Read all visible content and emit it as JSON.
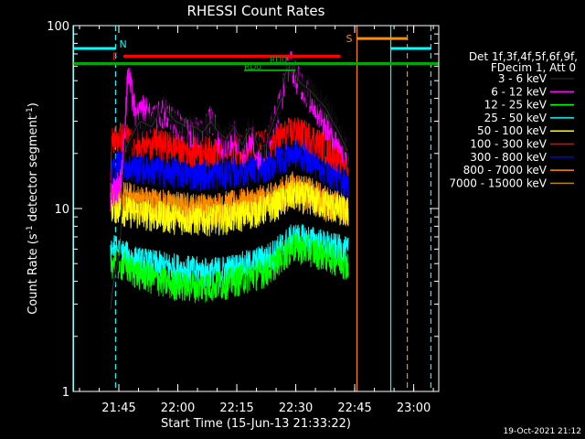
{
  "chart_data": {
    "type": "line",
    "title": "RHESSI Count Rates",
    "xlabel": "Start Time (15-Jun-13 21:33:22)",
    "ylabel_prefix": "Count Rate (s",
    "ylabel_sup": "-1",
    "ylabel_mid": " detector segment",
    "ylabel_sup2": "-1",
    "ylabel_suffix": ")",
    "yscale": "log",
    "ylim": [
      1,
      100
    ],
    "xlim_minutes": [
      0,
      93
    ],
    "y_ticks": [
      {
        "value": 1,
        "label": "1"
      },
      {
        "value": 10,
        "label": "10"
      },
      {
        "value": 100,
        "label": "100"
      }
    ],
    "x_ticks": [
      {
        "minute": 11.63,
        "label": "21:45"
      },
      {
        "minute": 26.63,
        "label": "22:00"
      },
      {
        "minute": 41.63,
        "label": "22:15"
      },
      {
        "minute": 56.63,
        "label": "22:30"
      },
      {
        "minute": 71.63,
        "label": "22:45"
      },
      {
        "minute": 86.63,
        "label": "23:00"
      }
    ],
    "legend_header": [
      "Det 1f,3f,4f,5f,6f,9f,",
      "FDecim 1, Att 0"
    ],
    "legend_position": "right",
    "data_start_minute": 9.5,
    "data_end_minute": 70.0,
    "series": [
      {
        "name": "3 - 6 keV",
        "color": "#000000",
        "minute": [
          9.5,
          10.5,
          12,
          13,
          15,
          17,
          20,
          23,
          26,
          29,
          31,
          33,
          35,
          37,
          39,
          41,
          43,
          45,
          47,
          49,
          51,
          53,
          54,
          55,
          56,
          57,
          58,
          60,
          62,
          64,
          66,
          68,
          70
        ],
        "values": [
          2.8,
          4.2,
          5.8,
          20,
          25,
          30,
          28,
          36,
          30,
          28,
          28,
          26,
          30,
          26,
          24,
          28,
          22,
          28,
          22,
          22,
          30,
          40,
          55,
          60,
          62,
          52,
          48,
          45,
          40,
          36,
          30,
          25,
          20
        ]
      },
      {
        "name": "6 - 12 keV",
        "color": "#ff00ff",
        "minute": [
          9.5,
          12,
          13,
          14,
          16,
          18,
          20,
          23,
          26,
          29,
          31,
          33,
          35,
          37,
          39,
          41,
          43,
          45,
          47,
          49,
          51,
          53,
          55,
          57,
          59,
          61,
          63,
          65,
          67,
          70
        ],
        "values": [
          12,
          14,
          22,
          55,
          30,
          36,
          30,
          34,
          30,
          26,
          27,
          25,
          32,
          24,
          22,
          26,
          20,
          26,
          20,
          22,
          30,
          40,
          65,
          52,
          45,
          38,
          32,
          28,
          24,
          20
        ]
      },
      {
        "name": "12 - 25 keV",
        "color": "#00ff00",
        "minute": [
          9.5,
          12,
          16,
          20,
          25,
          30,
          35,
          40,
          45,
          50,
          53,
          56,
          60,
          65,
          70
        ],
        "values": [
          5.2,
          5,
          4.5,
          4.2,
          3.9,
          3.8,
          3.8,
          4,
          4.3,
          4.7,
          5.5,
          6.2,
          6,
          5.5,
          5
        ]
      },
      {
        "name": "25 - 50 keV",
        "color": "#00ffff",
        "minute": [
          9.5,
          12,
          16,
          20,
          25,
          30,
          35,
          40,
          45,
          50,
          53,
          56,
          60,
          65,
          70
        ],
        "values": [
          6.2,
          5.8,
          5.2,
          5,
          4.8,
          4.6,
          4.5,
          4.7,
          5,
          5.5,
          6.2,
          7,
          6.8,
          6.3,
          5.8
        ]
      },
      {
        "name": "50 - 100 keV",
        "color": "#ffff00",
        "minute": [
          9.5,
          12,
          16,
          20,
          25,
          30,
          35,
          40,
          45,
          50,
          53,
          56,
          60,
          65,
          70
        ],
        "values": [
          10.5,
          10,
          9.5,
          9.3,
          9,
          8.8,
          8.8,
          9,
          9.5,
          10.2,
          11,
          12,
          11.5,
          10.5,
          9.5
        ]
      },
      {
        "name": "100 - 300 keV",
        "color": "#ff0000",
        "minute": [
          9.5,
          10,
          12,
          15,
          20,
          25,
          30,
          35,
          40,
          45,
          50,
          53,
          56,
          60,
          65,
          70
        ],
        "values": [
          15,
          24,
          25,
          24,
          23,
          22,
          21,
          21,
          21.5,
          22,
          23,
          25,
          27,
          25,
          21,
          18
        ]
      },
      {
        "name": "300 - 800 keV",
        "color": "#0000ff",
        "minute": [
          9.5,
          10,
          12,
          15,
          20,
          25,
          30,
          35,
          40,
          45,
          50,
          53,
          56,
          60,
          65,
          70
        ],
        "values": [
          12,
          17,
          18,
          17,
          16.5,
          16,
          15.5,
          15.5,
          16,
          16.5,
          17.5,
          19,
          20.5,
          19,
          16,
          14
        ]
      },
      {
        "name": "800 - 7000 keV",
        "color": "#ff8c00",
        "minute": [
          9.5,
          10,
          12,
          15,
          20,
          25,
          30,
          35,
          40,
          45,
          50,
          53,
          56,
          60,
          65,
          70
        ],
        "values": [
          12.5,
          13,
          12,
          11.5,
          11,
          10.5,
          10.2,
          10.2,
          10.5,
          11,
          11.5,
          12.5,
          13.5,
          12.5,
          11,
          10
        ]
      },
      {
        "name": "7000 - 15000 keV",
        "color": "#b8860b",
        "minute": [
          9.5,
          12,
          16,
          20,
          25,
          30,
          35,
          40,
          45,
          50,
          53,
          56,
          60,
          65,
          70
        ],
        "values": [
          12,
          11,
          10.5,
          10.2,
          10,
          9.8,
          9.8,
          10,
          10.3,
          10.8,
          11.5,
          12,
          11.5,
          10.5,
          9.8
        ]
      }
    ],
    "vertical_lines": [
      {
        "minute": 0.1,
        "color": "#00ffff",
        "style": "solid"
      },
      {
        "minute": 10.8,
        "color": "#00ffff",
        "style": "dashed"
      },
      {
        "minute": 72.2,
        "color": "#ff8c00",
        "style": "solid"
      },
      {
        "minute": 80.8,
        "color": "#00ffff",
        "style": "solid"
      },
      {
        "minute": 85.0,
        "color": "#ff8c00",
        "style": "dashed"
      },
      {
        "minute": 91.0,
        "color": "#00ffff",
        "style": "dashed"
      }
    ],
    "bars": [
      {
        "label": "N",
        "color": "#00ffff",
        "start": 0.2,
        "end": 10.8,
        "value": 75
      },
      {
        "label": "F",
        "color": "#ff0000",
        "start": 12.8,
        "end": 68.0,
        "value": 68
      },
      {
        "label": "",
        "color": "#00aa00",
        "start": 0,
        "end": 93,
        "value": 62
      },
      {
        "label": "S",
        "color": "#ff8c00",
        "start": 72.2,
        "end": 85.0,
        "value": 85
      },
      {
        "label": "",
        "color": "#00ffff",
        "start": 80.8,
        "end": 91.0,
        "value": 75
      }
    ],
    "annotations": [
      {
        "label": "RD0",
        "color": "#00aa00",
        "minute": 43.5,
        "value": 57,
        "line_start": 43.5,
        "line_end": 56.5
      },
      {
        "label": "RD0",
        "color": "#00aa00",
        "minute": 50.0,
        "value": 62
      }
    ]
  },
  "footer": {
    "timestamp": "19-Oct-2021 21:12"
  }
}
